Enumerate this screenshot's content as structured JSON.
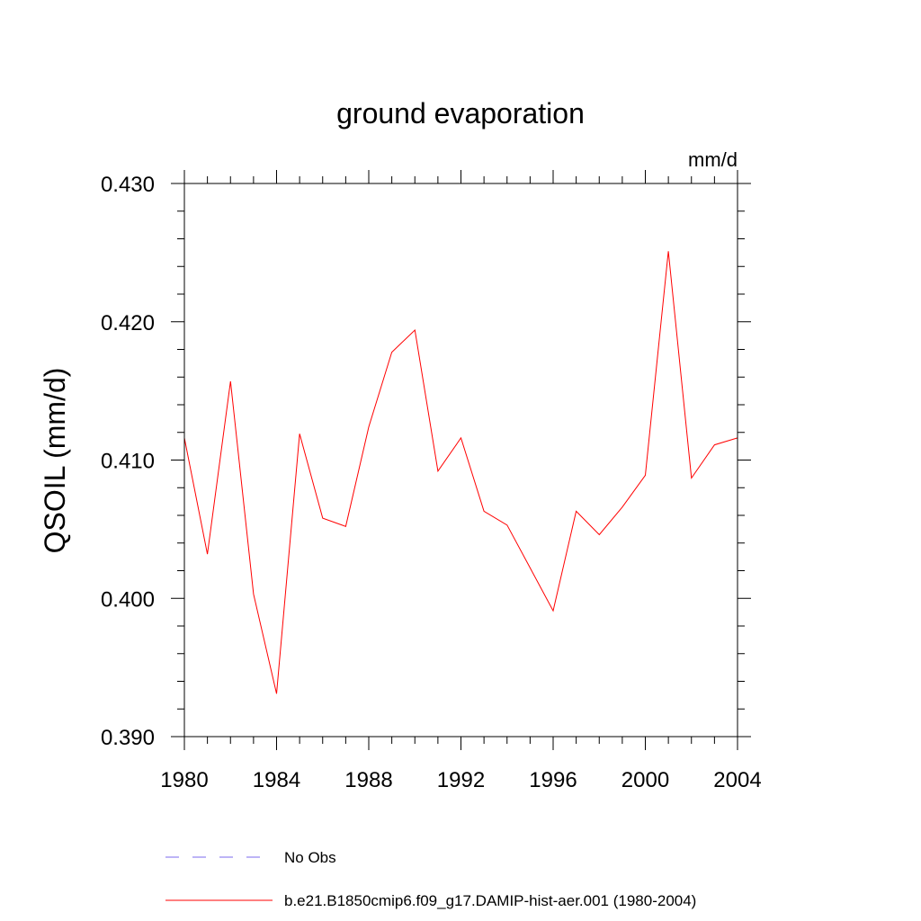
{
  "chart_data": {
    "type": "line",
    "title": "ground evaporation",
    "units": "mm/d",
    "ylabel": "QSOIL  (mm/d)",
    "xlabel": "",
    "xlim": [
      1980,
      2004
    ],
    "ylim": [
      0.39,
      0.43
    ],
    "x_ticks": [
      1980,
      1984,
      1988,
      1992,
      1996,
      2000,
      2004
    ],
    "x_tick_labels": [
      "1980",
      "1984",
      "1988",
      "1992",
      "1996",
      "2000",
      "2004"
    ],
    "y_ticks": [
      0.39,
      0.4,
      0.41,
      0.42,
      0.43
    ],
    "y_tick_labels": [
      "0.390",
      "0.400",
      "0.410",
      "0.420",
      "0.430"
    ],
    "x_minor_step": 1,
    "y_minor_step": 0.002,
    "grid": false,
    "legend_position": "bottom",
    "series": [
      {
        "name": "b.e21.B1850cmip6.f09_g17.DAMIP-hist-aer.001 (1980-2004)",
        "color": "#ff0000",
        "style": "solid",
        "x": [
          1980,
          1981,
          1982,
          1983,
          1984,
          1985,
          1986,
          1987,
          1988,
          1989,
          1990,
          1991,
          1992,
          1993,
          1994,
          1995,
          1996,
          1997,
          1998,
          1999,
          2000,
          2001,
          2002,
          2003,
          2004
        ],
        "y": [
          0.4116,
          0.4032,
          0.4157,
          0.4003,
          0.3931,
          0.4119,
          0.4058,
          0.4052,
          0.4124,
          0.4178,
          0.4194,
          0.4092,
          0.4116,
          0.4063,
          0.4053,
          0.4022,
          0.3991,
          0.4063,
          0.4046,
          0.4066,
          0.4089,
          0.4251,
          0.4087,
          0.4111,
          0.4116
        ]
      }
    ],
    "legend": [
      {
        "label": "No Obs",
        "color": "#7b68ee",
        "style": "dashed"
      },
      {
        "label": "b.e21.B1850cmip6.f09_g17.DAMIP-hist-aer.001 (1980-2004)",
        "color": "#ff0000",
        "style": "solid"
      }
    ]
  }
}
